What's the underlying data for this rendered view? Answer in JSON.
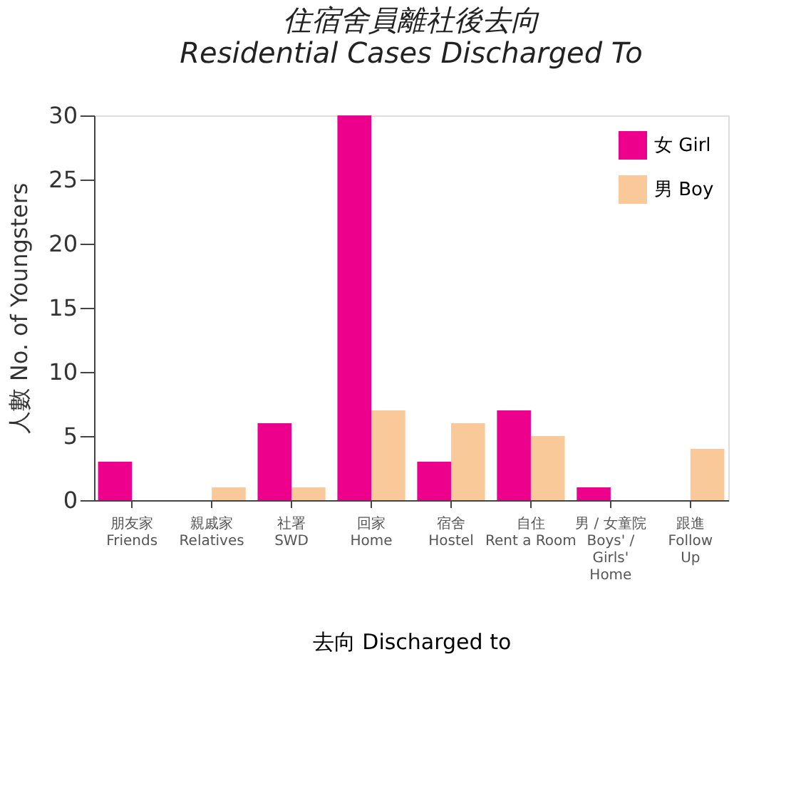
{
  "chart_data": {
    "type": "bar",
    "title": "住宿舍員離社後去向",
    "subtitle": "Residential Cases Discharged To",
    "xlabel": "去向  Discharged to",
    "ylabel": "人數  No. of Youngsters",
    "categories": [
      "朋友家\nFriends",
      "親戚家\nRelatives",
      "社署\nSWD",
      "回家\nHome",
      "宿舍\nHostel",
      "自住\nRent a Room",
      "男 / 女童院\nBoys' /\nGirls'\nHome",
      "跟進\nFollow\nUp"
    ],
    "series": [
      {
        "name": "女 Girl",
        "color": "#ec008c",
        "values": [
          3,
          null,
          6,
          30,
          3,
          7,
          1,
          null
        ]
      },
      {
        "name": "男 Boy",
        "color": "#f9c99a",
        "values": [
          null,
          1,
          1,
          7,
          6,
          5,
          null,
          4
        ]
      }
    ],
    "ylim": [
      0,
      30
    ],
    "yticks": [
      0,
      5,
      10,
      15,
      20,
      25,
      30
    ],
    "grid": false,
    "legend": "top right"
  }
}
